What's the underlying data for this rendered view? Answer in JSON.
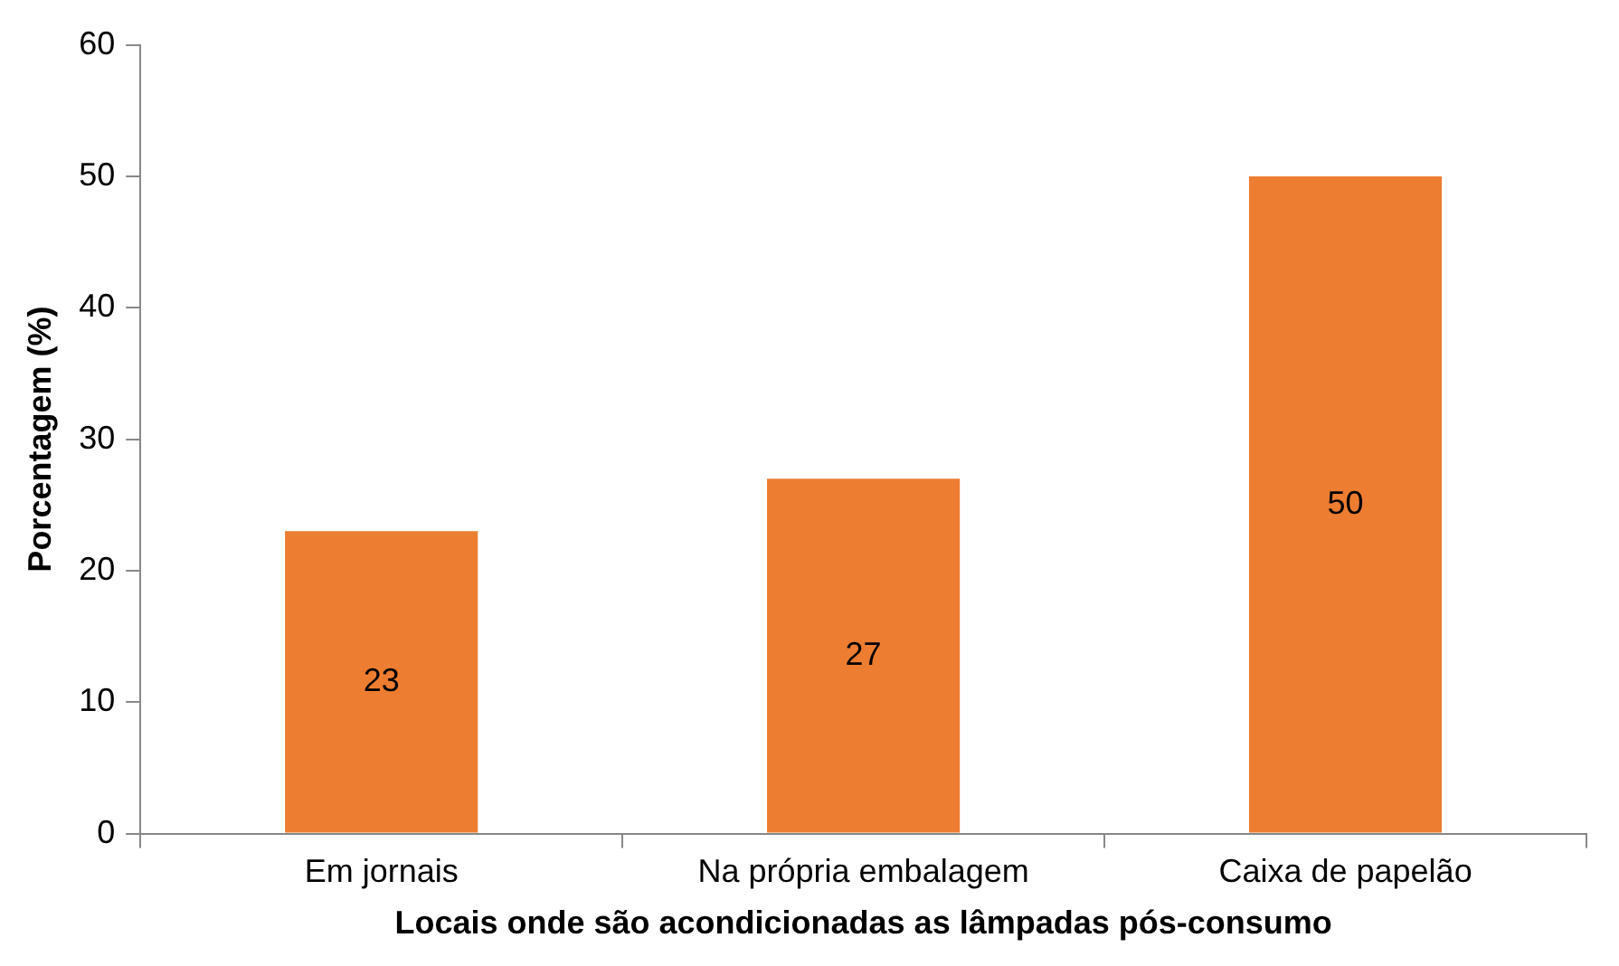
{
  "chart_data": {
    "type": "bar",
    "xlabel": "Locais onde são acondicionadas as lâmpadas pós-consumo",
    "ylabel": "Porcentagem (%)",
    "categories": [
      "Em jornais",
      "Na própria embalagem",
      "Caixa de papelão"
    ],
    "values": [
      23,
      27,
      50
    ],
    "color": "#ed7d31",
    "data_labels": true,
    "ylim": [
      0,
      60
    ],
    "yticks": [
      0,
      10,
      20,
      30,
      40,
      50,
      60
    ],
    "grid": false,
    "legend": false
  }
}
